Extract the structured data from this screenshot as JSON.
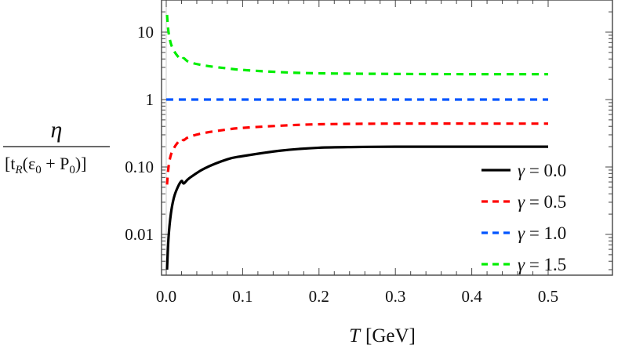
{
  "chart_data": {
    "type": "line",
    "title": "",
    "xlabel": "T [GeV]",
    "ylabel": "η / [t_R(ε0 + P0)]",
    "yscale": "log",
    "xlim": [
      0.0,
      0.5
    ],
    "ylim": [
      0.002,
      30
    ],
    "xticks": [
      "0.0",
      "0.1",
      "0.2",
      "0.3",
      "0.4",
      "0.5"
    ],
    "yticks": [
      "0.01",
      "0.10",
      "1",
      "10"
    ],
    "grid": false,
    "legend_position": "lower right",
    "series": [
      {
        "name": "γ = 0.0",
        "color": "#000000",
        "style": "solid",
        "x": [
          0.001,
          0.003,
          0.006,
          0.01,
          0.015,
          0.02,
          0.023,
          0.03,
          0.05,
          0.08,
          0.1,
          0.15,
          0.2,
          0.25,
          0.3,
          0.4,
          0.5
        ],
        "y": [
          0.003,
          0.009,
          0.02,
          0.035,
          0.05,
          0.062,
          0.057,
          0.068,
          0.095,
          0.13,
          0.145,
          0.175,
          0.193,
          0.198,
          0.2,
          0.2,
          0.2
        ]
      },
      {
        "name": "γ = 0.5",
        "color": "#ff0000",
        "style": "dashed",
        "x": [
          0.001,
          0.003,
          0.006,
          0.01,
          0.015,
          0.02,
          0.023,
          0.03,
          0.05,
          0.08,
          0.1,
          0.15,
          0.2,
          0.3,
          0.4,
          0.5
        ],
        "y": [
          0.055,
          0.1,
          0.15,
          0.19,
          0.23,
          0.26,
          0.25,
          0.28,
          0.32,
          0.36,
          0.38,
          0.41,
          0.43,
          0.44,
          0.44,
          0.44
        ]
      },
      {
        "name": "γ = 1.0",
        "color": "#0055ff",
        "style": "dashed",
        "x": [
          0.0,
          0.1,
          0.2,
          0.3,
          0.4,
          0.5
        ],
        "y": [
          1.0,
          1.0,
          1.0,
          1.0,
          1.0,
          1.0
        ]
      },
      {
        "name": "γ = 1.5",
        "color": "#00ee00",
        "style": "dashed",
        "x": [
          0.001,
          0.003,
          0.006,
          0.01,
          0.015,
          0.02,
          0.023,
          0.03,
          0.05,
          0.08,
          0.1,
          0.15,
          0.2,
          0.3,
          0.4,
          0.5
        ],
        "y": [
          18,
          10,
          6.8,
          5.3,
          4.4,
          3.9,
          4.1,
          3.6,
          3.2,
          2.9,
          2.75,
          2.55,
          2.45,
          2.4,
          2.38,
          2.38
        ]
      }
    ]
  },
  "axes": {
    "xlabel_italic": "T",
    "xlabel_unit": "[GeV]",
    "ylabel_numerator": "η",
    "ylabel_denominator": "[t",
    "ylabel_sub_r": "R",
    "ylabel_paren_open": "(ε",
    "ylabel_sub0a": "0",
    "ylabel_plus": " + P",
    "ylabel_sub0b": "0",
    "ylabel_close": ")]"
  },
  "legend": [
    {
      "label": "γ = 0.0",
      "color": "#000000",
      "dash": "none"
    },
    {
      "label": "γ = 0.5",
      "color": "#ff0000",
      "dash": "8,6"
    },
    {
      "label": "γ = 1.0",
      "color": "#0055ff",
      "dash": "8,6"
    },
    {
      "label": "γ = 1.5",
      "color": "#00ee00",
      "dash": "8,6"
    }
  ]
}
